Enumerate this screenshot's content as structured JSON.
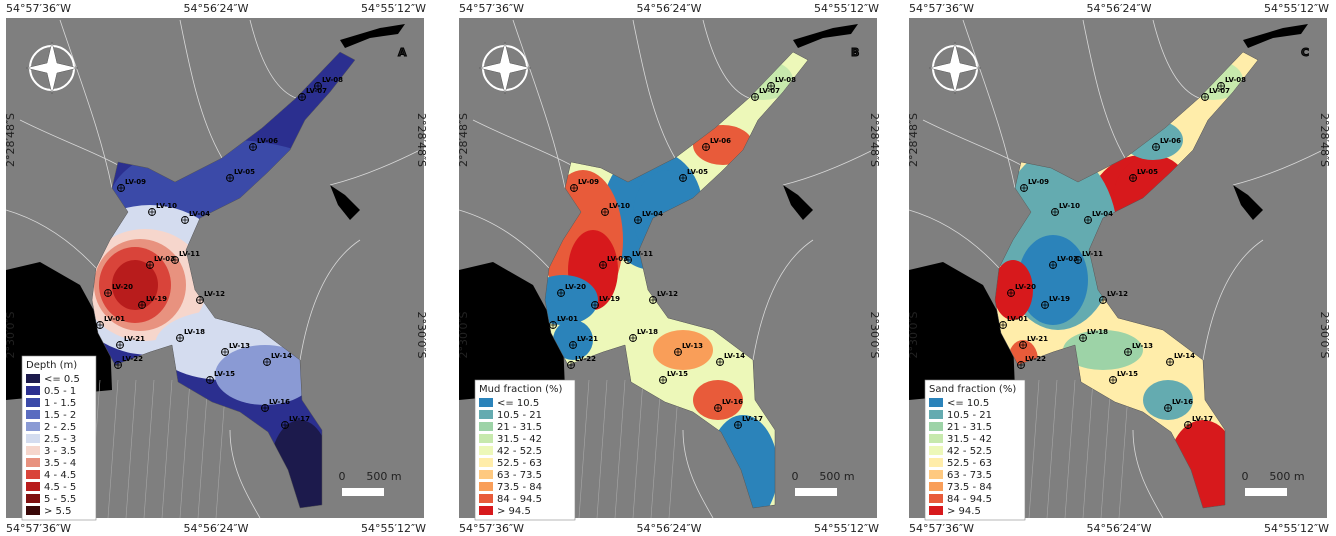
{
  "coordinates": {
    "longitudes": [
      "54°57′36″W",
      "54°56′24″W",
      "54°55′12″W"
    ],
    "latitudes": [
      "2°28′48″S",
      "2°30′0″S"
    ]
  },
  "stations": [
    "LV-08",
    "LV-07",
    "LV-06",
    "LV-05",
    "LV-04",
    "LV-10",
    "LV-09",
    "LV-11",
    "LV-03",
    "LV-20",
    "LV-19",
    "LV-12",
    "LV-01",
    "LV-18",
    "LV-21",
    "LV-22",
    "LV-13",
    "LV-14",
    "LV-15",
    "LV-16",
    "LV-17"
  ],
  "scale_bar": {
    "zero": "0",
    "length": "500 m"
  },
  "panels": [
    {
      "letter": "A",
      "legend": {
        "title": "Depth (m)",
        "items": [
          {
            "label": "<= 0.5",
            "color": "#1c1a4c"
          },
          {
            "label": "0.5 - 1",
            "color": "#2b2f8f"
          },
          {
            "label": "1 - 1.5",
            "color": "#3b4aa8"
          },
          {
            "label": "1.5 - 2",
            "color": "#5a6cc0"
          },
          {
            "label": "2 - 2.5",
            "color": "#8a9ad4"
          },
          {
            "label": "2.5 - 3",
            "color": "#d4dcef"
          },
          {
            "label": "3 - 3.5",
            "color": "#f6d6cc"
          },
          {
            "label": "3.5 - 4",
            "color": "#e8927f"
          },
          {
            "label": "4 - 4.5",
            "color": "#d9443a"
          },
          {
            "label": "4.5 - 5",
            "color": "#b81c1c"
          },
          {
            "label": "5 - 5.5",
            "color": "#7f1010"
          },
          {
            "label": "> 5.5",
            "color": "#3a0808"
          }
        ]
      }
    },
    {
      "letter": "B",
      "legend": {
        "title": "Mud fraction (%)",
        "items": [
          {
            "label": "<= 10.5",
            "color": "#2b83ba"
          },
          {
            "label": "10.5 - 21",
            "color": "#64abb0"
          },
          {
            "label": "21 - 31.5",
            "color": "#9dd3a7"
          },
          {
            "label": "31.5 - 42",
            "color": "#c7e9ad"
          },
          {
            "label": "42 - 52.5",
            "color": "#edf8b9"
          },
          {
            "label": "52.5 - 63",
            "color": "#ffedaa"
          },
          {
            "label": "63 - 73.5",
            "color": "#fec980"
          },
          {
            "label": "73.5 - 84",
            "color": "#f99e59"
          },
          {
            "label": "84 - 94.5",
            "color": "#e85b3a"
          },
          {
            "label": "> 94.5",
            "color": "#d7191c"
          }
        ]
      }
    },
    {
      "letter": "C",
      "legend": {
        "title": "Sand fraction (%)",
        "items": [
          {
            "label": "<= 10.5",
            "color": "#2b83ba"
          },
          {
            "label": "10.5 - 21",
            "color": "#64abb0"
          },
          {
            "label": "21 - 31.5",
            "color": "#9dd3a7"
          },
          {
            "label": "31.5 - 42",
            "color": "#c7e9ad"
          },
          {
            "label": "42 - 52.5",
            "color": "#edf8b9"
          },
          {
            "label": "52.5 - 63",
            "color": "#ffedaa"
          },
          {
            "label": "63 - 73.5",
            "color": "#fec980"
          },
          {
            "label": "73.5 - 84",
            "color": "#f99e59"
          },
          {
            "label": "84 - 94.5",
            "color": "#e85b3a"
          },
          {
            "label": "> 94.5",
            "color": "#d7191c"
          }
        ]
      }
    }
  ]
}
